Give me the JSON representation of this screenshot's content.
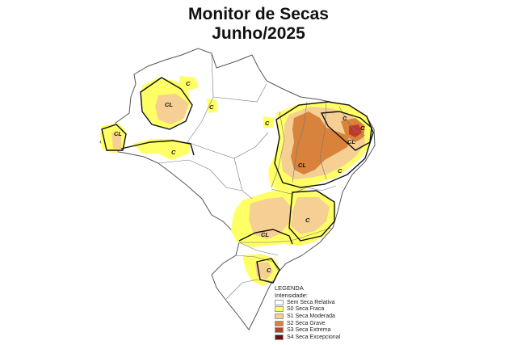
{
  "title_line1": "Monitor de Secas",
  "title_line2": "Junho/2025",
  "legend": {
    "heading": "LEGENDA",
    "subheading": "Intensidade:",
    "items": [
      {
        "label": "Sem Seca Relativa",
        "color": "#ffffff"
      },
      {
        "label": "S0 Seca Fraca",
        "color": "#ffff66"
      },
      {
        "label": "S1 Seca Moderada",
        "color": "#f5cf93"
      },
      {
        "label": "S2 Seca Grave",
        "color": "#d9823b"
      },
      {
        "label": "S3 Seca Extrema",
        "color": "#c0392b"
      },
      {
        "label": "S4 Seca Excepcional",
        "color": "#6e0f0f"
      }
    ]
  },
  "impact_labels": {
    "cl": "CL",
    "c": "C"
  }
}
